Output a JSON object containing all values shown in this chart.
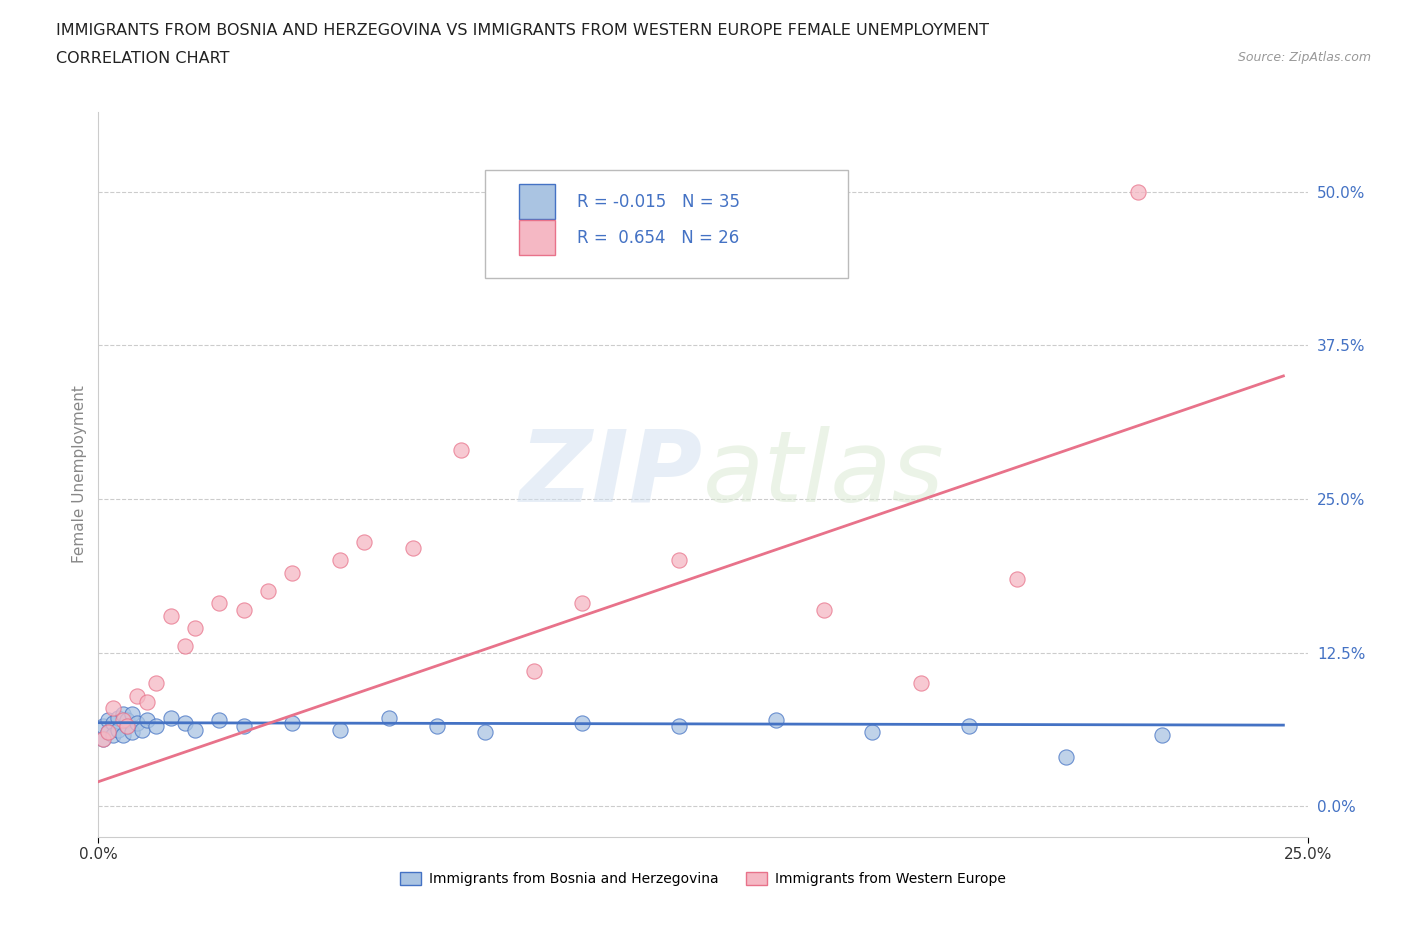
{
  "title_line1": "IMMIGRANTS FROM BOSNIA AND HERZEGOVINA VS IMMIGRANTS FROM WESTERN EUROPE FEMALE UNEMPLOYMENT",
  "title_line2": "CORRELATION CHART",
  "source": "Source: ZipAtlas.com",
  "ylabel": "Female Unemployment",
  "watermark_zip": "ZIP",
  "watermark_atlas": "atlas",
  "xlim": [
    0.0,
    0.25
  ],
  "ylim": [
    -0.025,
    0.565
  ],
  "yticks": [
    0.0,
    0.125,
    0.25,
    0.375,
    0.5
  ],
  "ytick_labels": [
    "0.0%",
    "12.5%",
    "25.0%",
    "37.5%",
    "50.0%"
  ],
  "xticks": [
    0.0,
    0.25
  ],
  "xtick_labels": [
    "0.0%",
    "25.0%"
  ],
  "legend_entry1": "Immigrants from Bosnia and Herzegovina",
  "legend_entry2": "Immigrants from Western Europe",
  "R1": -0.015,
  "N1": 35,
  "R2": 0.654,
  "N2": 26,
  "color1": "#aac4e2",
  "color2": "#f5b8c4",
  "line_color1": "#4472c4",
  "line_color2": "#e8728a",
  "scatter1_x": [
    0.001,
    0.001,
    0.002,
    0.002,
    0.003,
    0.003,
    0.004,
    0.004,
    0.005,
    0.005,
    0.006,
    0.006,
    0.007,
    0.007,
    0.008,
    0.009,
    0.01,
    0.012,
    0.015,
    0.018,
    0.02,
    0.025,
    0.03,
    0.04,
    0.05,
    0.06,
    0.07,
    0.08,
    0.1,
    0.12,
    0.14,
    0.16,
    0.18,
    0.2,
    0.22
  ],
  "scatter1_y": [
    0.065,
    0.055,
    0.07,
    0.06,
    0.068,
    0.058,
    0.072,
    0.062,
    0.075,
    0.058,
    0.065,
    0.07,
    0.06,
    0.075,
    0.068,
    0.062,
    0.07,
    0.065,
    0.072,
    0.068,
    0.062,
    0.07,
    0.065,
    0.068,
    0.062,
    0.072,
    0.065,
    0.06,
    0.068,
    0.065,
    0.07,
    0.06,
    0.065,
    0.04,
    0.058
  ],
  "scatter2_x": [
    0.001,
    0.002,
    0.003,
    0.005,
    0.006,
    0.008,
    0.01,
    0.012,
    0.015,
    0.018,
    0.02,
    0.025,
    0.03,
    0.035,
    0.04,
    0.05,
    0.055,
    0.065,
    0.075,
    0.09,
    0.1,
    0.12,
    0.15,
    0.17,
    0.19,
    0.215
  ],
  "scatter2_y": [
    0.055,
    0.06,
    0.08,
    0.07,
    0.065,
    0.09,
    0.085,
    0.1,
    0.155,
    0.13,
    0.145,
    0.165,
    0.16,
    0.175,
    0.19,
    0.2,
    0.215,
    0.21,
    0.29,
    0.11,
    0.165,
    0.2,
    0.16,
    0.1,
    0.185,
    0.5
  ],
  "trend1_x0": 0.0,
  "trend1_x1": 0.245,
  "trend1_y0": 0.068,
  "trend1_y1": 0.066,
  "trend2_x0": 0.0,
  "trend2_x1": 0.245,
  "trend2_y0": 0.02,
  "trend2_y1": 0.35
}
